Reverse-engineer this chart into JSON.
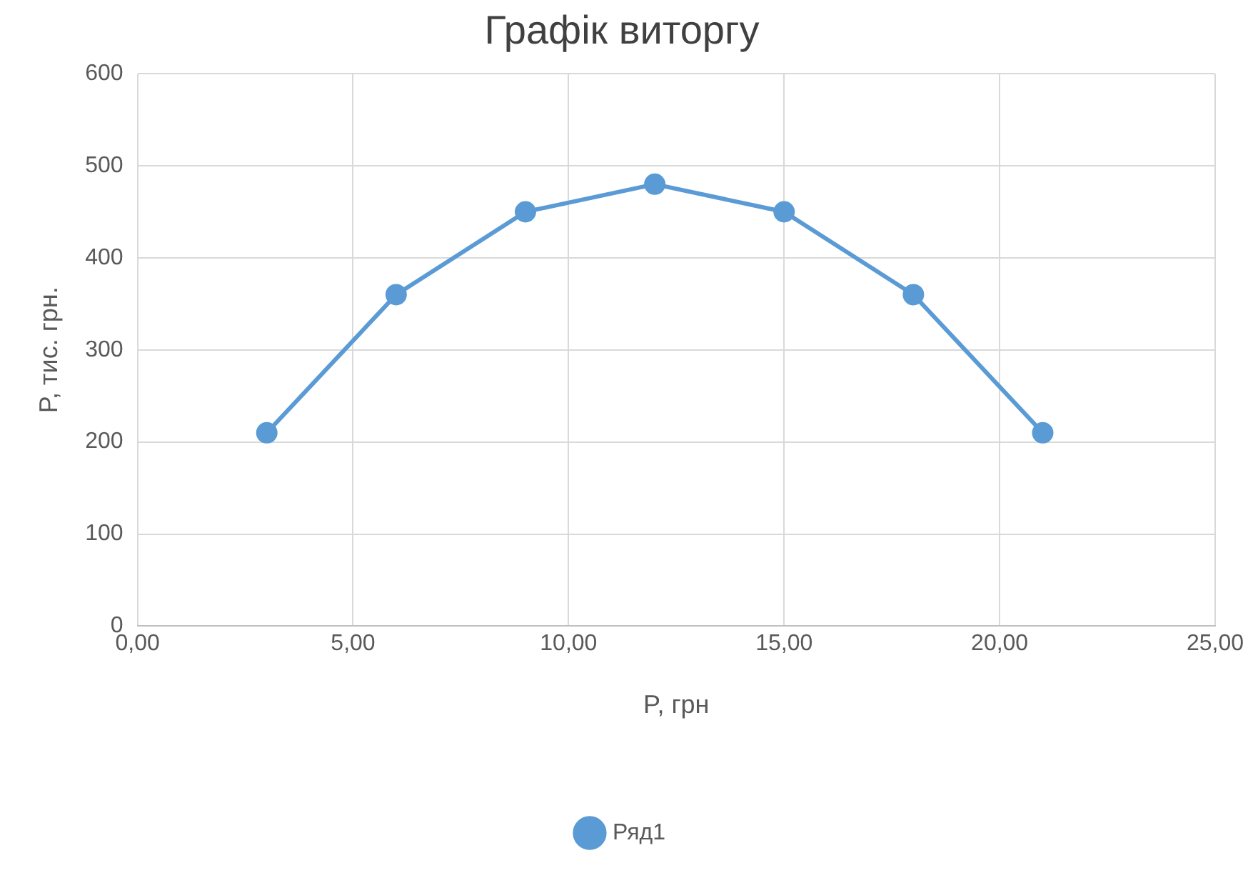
{
  "chart_data": {
    "type": "line",
    "title": "Графік виторгу",
    "xlabel": "P, грн",
    "ylabel": "P, тис. грн.",
    "x": [
      3,
      6,
      9,
      12,
      15,
      18,
      21
    ],
    "series": [
      {
        "name": "Ряд1",
        "color": "#5b9bd5",
        "values": [
          210,
          360,
          450,
          480,
          450,
          360,
          210
        ]
      }
    ],
    "xlim": [
      0,
      25
    ],
    "xticks": [
      {
        "value": 0,
        "label": "0,00"
      },
      {
        "value": 5,
        "label": "5,00"
      },
      {
        "value": 10,
        "label": "10,00"
      },
      {
        "value": 15,
        "label": "15,00"
      },
      {
        "value": 20,
        "label": "20,00"
      },
      {
        "value": 25,
        "label": "25,00"
      }
    ],
    "ylim": [
      0,
      600
    ],
    "yticks": [
      0,
      100,
      200,
      300,
      400,
      500,
      600
    ],
    "grid": true,
    "legend": "bottom",
    "marker": "circle",
    "line_style": "solid"
  }
}
